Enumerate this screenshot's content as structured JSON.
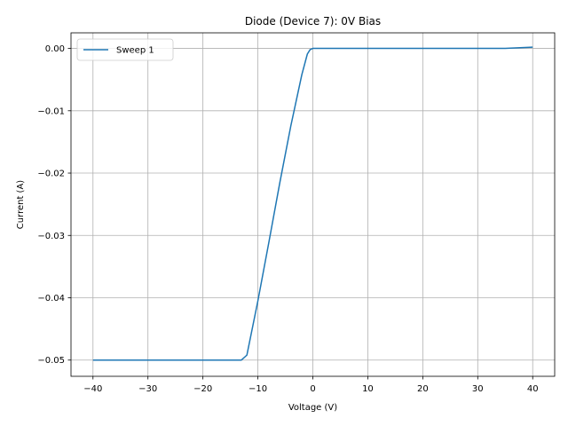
{
  "chart_data": {
    "type": "line",
    "title": "Diode (Device 7): 0V Bias",
    "xlabel": "Voltage (V)",
    "ylabel": "Current (A)",
    "xlim": [
      -44,
      44
    ],
    "ylim": [
      -0.0526,
      0.0025
    ],
    "xticks": [
      -40,
      -30,
      -20,
      -10,
      0,
      10,
      20,
      30,
      40
    ],
    "xtick_labels": [
      "−40",
      "−30",
      "−20",
      "−10",
      "0",
      "10",
      "20",
      "30",
      "40"
    ],
    "yticks": [
      -0.05,
      -0.04,
      -0.03,
      -0.02,
      -0.01,
      0.0
    ],
    "ytick_labels": [
      "−0.05",
      "−0.04",
      "−0.03",
      "−0.02",
      "−0.01",
      "0.00"
    ],
    "grid": true,
    "legend": "upper-left",
    "series": [
      {
        "name": "Sweep 1",
        "color": "#1f77b4",
        "x": [
          -40,
          -30,
          -20,
          -13,
          -12,
          -10,
          -8,
          -6,
          -4,
          -2,
          -1,
          -0.5,
          0,
          10,
          20,
          30,
          35,
          40
        ],
        "y": [
          -0.05,
          -0.05,
          -0.05,
          -0.05,
          -0.0492,
          -0.0405,
          -0.0311,
          -0.0215,
          -0.0124,
          -0.0042,
          -0.0009,
          -0.0002,
          0.0,
          0.0,
          0.0,
          0.0,
          0.0,
          0.0002
        ]
      }
    ]
  }
}
